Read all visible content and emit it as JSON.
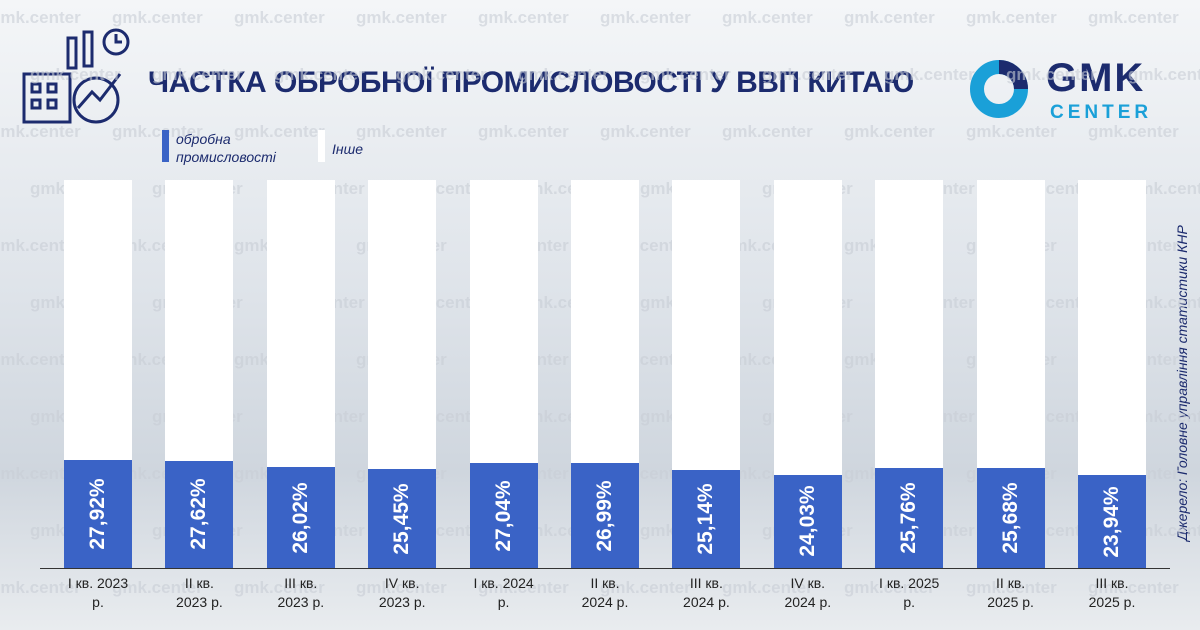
{
  "chart_data": {
    "type": "bar",
    "stacked": true,
    "title": "ЧАСТКА ОБРОБНОЇ ПРОМИСЛОВОСТІ У ВВП КИТАЮ",
    "source": "Джерело: Головне управління статистики КНР",
    "logo": [
      "GMK",
      "CENTER"
    ],
    "watermark": "gmk.center",
    "categories": [
      "I кв. 2023 р.",
      "II кв. 2023 р.",
      "III кв. 2023 р.",
      "IV кв. 2023 р.",
      "I кв. 2024 р.",
      "II кв. 2024 р.",
      "III кв. 2024 р.",
      "IV кв. 2024 р.",
      "I кв. 2025 р.",
      "II кв. 2025 р.",
      "III кв. 2025 р."
    ],
    "series": [
      {
        "name": "обробна промисловості",
        "color": "#3a63c6",
        "values": [
          27.92,
          27.62,
          26.02,
          25.45,
          27.04,
          26.99,
          25.14,
          24.03,
          25.76,
          25.68,
          23.94
        ],
        "value_labels": [
          "27,92%",
          "27,62%",
          "26,02%",
          "25,45%",
          "27,04%",
          "26,99%",
          "25,14%",
          "24,03%",
          "25,76%",
          "25,68%",
          "23,94%"
        ]
      },
      {
        "name": "Інше",
        "color": "#ffffff",
        "values": [
          72.08,
          72.38,
          73.98,
          74.55,
          72.96,
          73.01,
          74.86,
          75.97,
          74.24,
          74.32,
          76.06
        ]
      }
    ],
    "ylim": [
      0,
      100
    ]
  }
}
